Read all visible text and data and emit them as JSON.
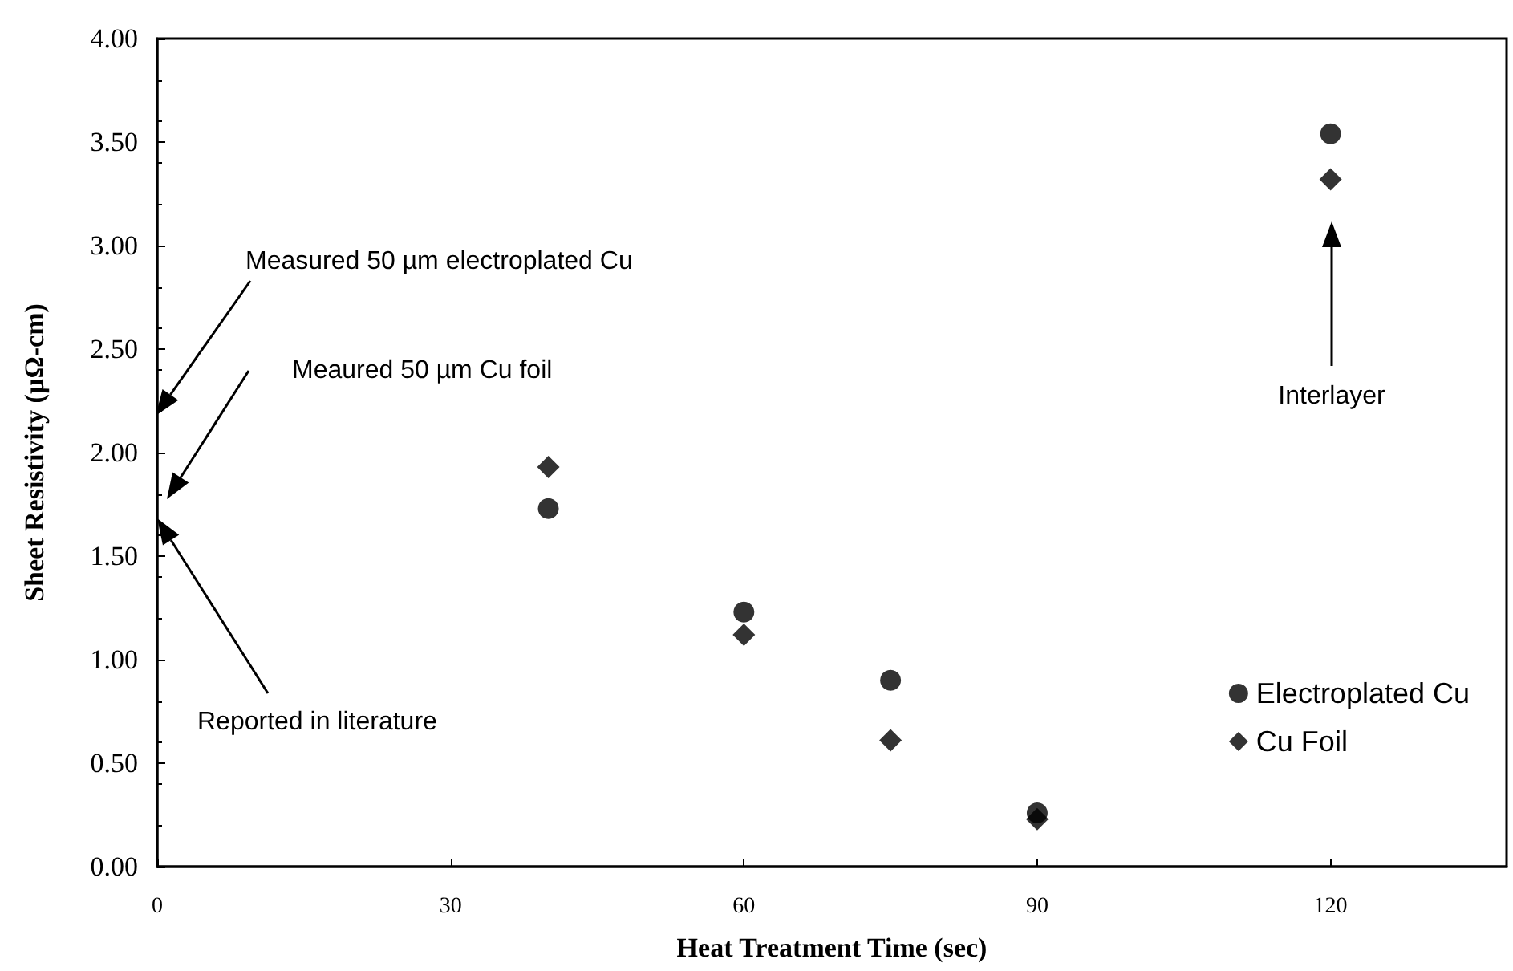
{
  "chart_data": {
    "type": "scatter",
    "xlabel": "Heat Treatment Time (sec)",
    "ylabel": "Sheet Resistivity (µΩ-cm)",
    "xlim": [
      0,
      138
    ],
    "xticks": [
      0,
      30,
      60,
      90,
      120
    ],
    "ylim": [
      0,
      4
    ],
    "yticks": [
      {
        "value": 0,
        "label": "0.00"
      },
      {
        "value": 0.5,
        "label": "0.50"
      },
      {
        "value": 1,
        "label": "1.00"
      },
      {
        "value": 1.5,
        "label": "1.50"
      },
      {
        "value": 2,
        "label": "2.00"
      },
      {
        "value": 2.5,
        "label": "2.50"
      },
      {
        "value": 3,
        "label": "3.00"
      },
      {
        "value": 3.5,
        "label": "3.50"
      },
      {
        "value": 4,
        "label": "4.00"
      }
    ],
    "grid": false,
    "legend": "bottom right",
    "series": [
      {
        "name": "Electroplated Cu",
        "color": "#000000",
        "marker": "circle",
        "x": [
          40,
          60,
          75,
          90
        ],
        "values": [
          1.73,
          1.23,
          0.9,
          0.26
        ]
      },
      {
        "name": "Cu Foil",
        "color": "#000000",
        "marker": "diamond",
        "x": [
          40,
          60,
          75,
          90
        ],
        "values": [
          1.93,
          1.12,
          0.61,
          0.23
        ]
      },
      {
        "color": "#000000",
        "marker": "circle",
        "x": [
          120
        ],
        "values": [
          3.54
        ]
      },
      {
        "color": "#000000",
        "marker": "diamond",
        "x": [
          120
        ],
        "values": [
          3.32
        ]
      }
    ],
    "annotations": [
      "Measured 50 µm electroplated Cu",
      "Meaured 50 µm Cu foil",
      "Reported in literature",
      "Interlayer"
    ]
  }
}
